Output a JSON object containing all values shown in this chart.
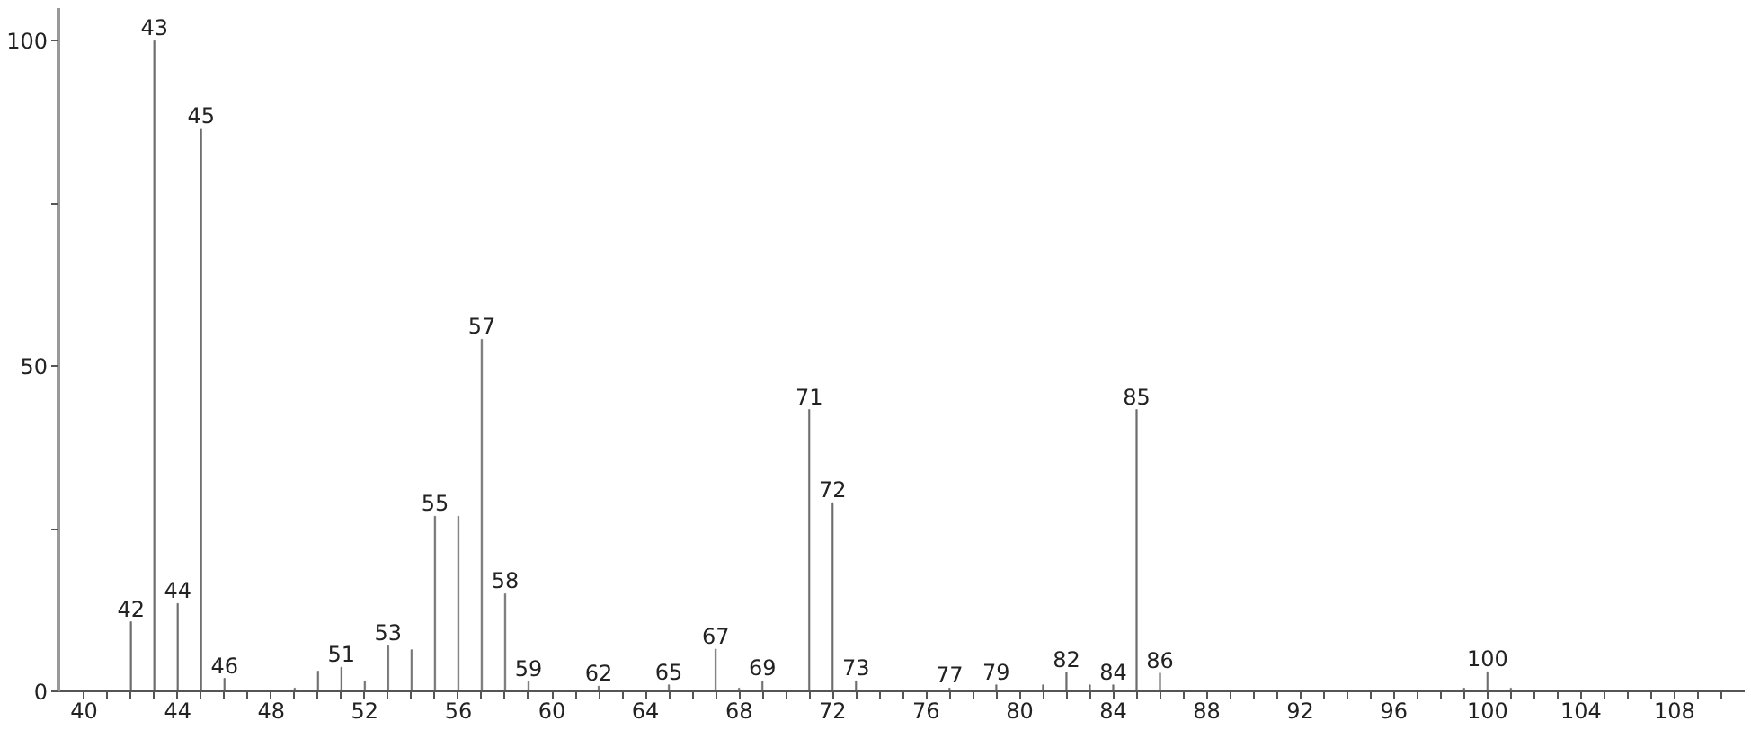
{
  "chart_data": {
    "type": "bar",
    "color": "#6e6e6e",
    "x": [
      42,
      43,
      44,
      45,
      46,
      49,
      50,
      51,
      52,
      53,
      54,
      55,
      56,
      57,
      58,
      59,
      62,
      65,
      67,
      68,
      69,
      71,
      72,
      73,
      77,
      79,
      81,
      82,
      83,
      84,
      85,
      86,
      99,
      100,
      101
    ],
    "values": [
      10.7,
      100,
      13.5,
      86.5,
      2,
      0.5,
      3.1,
      3.7,
      1.6,
      7,
      6.4,
      26.9,
      26.9,
      54.1,
      15,
      1.5,
      0.8,
      1,
      6.5,
      0.5,
      1.6,
      43.3,
      29,
      1.6,
      0.5,
      1,
      1,
      2.9,
      1,
      1,
      43.3,
      2.8,
      0.5,
      3,
      0.5
    ],
    "annotations": [
      {
        "text": "42",
        "x": 42,
        "y": 10.7
      },
      {
        "text": "43",
        "x": 43,
        "y": 100
      },
      {
        "text": "44",
        "x": 44,
        "y": 13.5
      },
      {
        "text": "45",
        "x": 45,
        "y": 86.5
      },
      {
        "text": "46",
        "x": 46,
        "y": 2
      },
      {
        "text": "51",
        "x": 51,
        "y": 3.7
      },
      {
        "text": "53",
        "x": 53,
        "y": 7
      },
      {
        "text": "55",
        "x": 55,
        "y": 26.9
      },
      {
        "text": "57",
        "x": 57,
        "y": 54.1
      },
      {
        "text": "58",
        "x": 58,
        "y": 15
      },
      {
        "text": "59",
        "x": 59,
        "y": 1.5
      },
      {
        "text": "62",
        "x": 62,
        "y": 0.8
      },
      {
        "text": "65",
        "x": 65,
        "y": 1
      },
      {
        "text": "67",
        "x": 67,
        "y": 6.5
      },
      {
        "text": "69",
        "x": 69,
        "y": 1.6
      },
      {
        "text": "71",
        "x": 71,
        "y": 43.3
      },
      {
        "text": "72",
        "x": 72,
        "y": 29
      },
      {
        "text": "73",
        "x": 73,
        "y": 1.6
      },
      {
        "text": "77",
        "x": 77,
        "y": 0.5
      },
      {
        "text": "79",
        "x": 79,
        "y": 1
      },
      {
        "text": "82",
        "x": 82,
        "y": 2.9
      },
      {
        "text": "84",
        "x": 84,
        "y": 1
      },
      {
        "text": "85",
        "x": 85,
        "y": 43.3
      },
      {
        "text": "86",
        "x": 86,
        "y": 2.8
      },
      {
        "text": "100",
        "x": 100,
        "y": 3
      }
    ],
    "xlim": [
      38.9,
      111
    ],
    "xticks": [
      40,
      {
        "value": 41,
        "label": null
      },
      {
        "value": 42,
        "label": null
      },
      {
        "value": 43,
        "label": null
      },
      44,
      {
        "value": 45,
        "label": null
      },
      {
        "value": 46,
        "label": null
      },
      {
        "value": 47,
        "label": null
      },
      48,
      {
        "value": 49,
        "label": null
      },
      {
        "value": 50,
        "label": null
      },
      {
        "value": 51,
        "label": null
      },
      52,
      {
        "value": 53,
        "label": null
      },
      {
        "value": 54,
        "label": null
      },
      {
        "value": 55,
        "label": null
      },
      56,
      {
        "value": 57,
        "label": null
      },
      {
        "value": 58,
        "label": null
      },
      {
        "value": 59,
        "label": null
      },
      60,
      {
        "value": 61,
        "label": null
      },
      {
        "value": 62,
        "label": null
      },
      {
        "value": 63,
        "label": null
      },
      64,
      {
        "value": 65,
        "label": null
      },
      {
        "value": 66,
        "label": null
      },
      {
        "value": 67,
        "label": null
      },
      68,
      {
        "value": 69,
        "label": null
      },
      {
        "value": 70,
        "label": null
      },
      {
        "value": 71,
        "label": null
      },
      72,
      {
        "value": 73,
        "label": null
      },
      {
        "value": 74,
        "label": null
      },
      {
        "value": 75,
        "label": null
      },
      76,
      {
        "value": 77,
        "label": null
      },
      {
        "value": 78,
        "label": null
      },
      {
        "value": 79,
        "label": null
      },
      80,
      {
        "value": 81,
        "label": null
      },
      {
        "value": 82,
        "label": null
      },
      {
        "value": 83,
        "label": null
      },
      84,
      {
        "value": 85,
        "label": null
      },
      {
        "value": 86,
        "label": null
      },
      {
        "value": 87,
        "label": null
      },
      88,
      {
        "value": 89,
        "label": null
      },
      {
        "value": 90,
        "label": null
      },
      {
        "value": 91,
        "label": null
      },
      92,
      {
        "value": 93,
        "label": null
      },
      {
        "value": 94,
        "label": null
      },
      {
        "value": 95,
        "label": null
      },
      96,
      {
        "value": 97,
        "label": null
      },
      {
        "value": 98,
        "label": null
      },
      {
        "value": 99,
        "label": null
      },
      100,
      {
        "value": 101,
        "label": null
      },
      {
        "value": 102,
        "label": null
      },
      {
        "value": 103,
        "label": null
      },
      104,
      {
        "value": 105,
        "label": null
      },
      {
        "value": 106,
        "label": null
      },
      {
        "value": 107,
        "label": null
      },
      108,
      {
        "value": 109,
        "label": null
      },
      {
        "value": 110,
        "label": null
      }
    ],
    "ylim": [
      0,
      105
    ],
    "yticks": [
      0,
      {
        "value": 25,
        "label": null
      },
      50,
      {
        "value": 75,
        "label": null
      },
      100
    ],
    "grid": false
  }
}
